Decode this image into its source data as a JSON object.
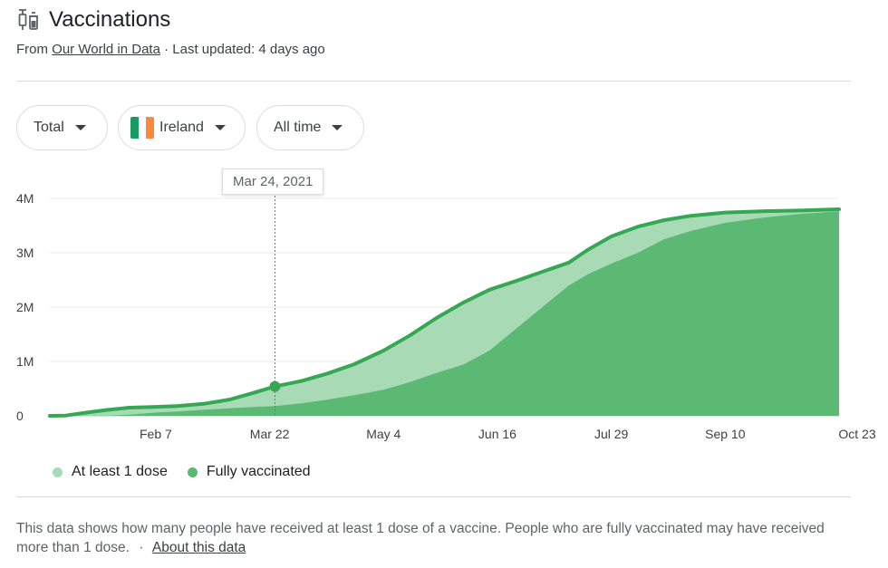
{
  "header": {
    "title": "Vaccinations",
    "source_prefix": "From",
    "source_link": "Our World in Data",
    "updated": "· Last updated: 4 days ago"
  },
  "filters": {
    "metric": "Total",
    "country": "Ireland",
    "range": "All time"
  },
  "tooltip": {
    "date": "Mar 24, 2021"
  },
  "legend": {
    "dose1": "At least 1 dose",
    "full": "Fully vaccinated"
  },
  "footnote": {
    "text": "This data shows how many people have received at least 1 dose of a vaccine. People who are fully vaccinated may have received more than 1 dose.",
    "separator": "·",
    "link": "About this data"
  },
  "colors": {
    "dose1_fill": "#a8dab5",
    "full_fill": "#5bb974",
    "line": "#34a853",
    "flag_green": "#169b62",
    "flag_white": "#ffffff",
    "flag_orange": "#ff883e"
  },
  "chart_data": {
    "type": "area",
    "title": "",
    "xlabel": "",
    "ylabel": "",
    "x_range": [
      "2020-12-29",
      "2021-10-23"
    ],
    "ylim": [
      0,
      4000000
    ],
    "y_ticks": [
      {
        "value": 0,
        "label": "0"
      },
      {
        "value": 1000000,
        "label": "1M"
      },
      {
        "value": 2000000,
        "label": "2M"
      },
      {
        "value": 3000000,
        "label": "3M"
      },
      {
        "value": 4000000,
        "label": "4M"
      }
    ],
    "x_ticks": [
      {
        "date": "2021-02-07",
        "label": "Feb 7"
      },
      {
        "date": "2021-03-22",
        "label": "Mar 22"
      },
      {
        "date": "2021-05-04",
        "label": "May 4"
      },
      {
        "date": "2021-06-16",
        "label": "Jun 16"
      },
      {
        "date": "2021-07-29",
        "label": "Jul 29"
      },
      {
        "date": "2021-09-10",
        "label": "Sep 10"
      },
      {
        "date": "2021-10-23",
        "label": "Oct 23"
      }
    ],
    "grid": true,
    "legend_position": "bottom-left",
    "highlight": {
      "date": "2021-03-24",
      "series": "At least 1 dose",
      "value": 540000
    },
    "series": [
      {
        "name": "At least 1 dose",
        "points": [
          [
            "2020-12-29",
            0
          ],
          [
            "2021-01-04",
            5000
          ],
          [
            "2021-01-12",
            60000
          ],
          [
            "2021-01-20",
            110000
          ],
          [
            "2021-01-28",
            150000
          ],
          [
            "2021-02-07",
            165000
          ],
          [
            "2021-02-15",
            180000
          ],
          [
            "2021-02-25",
            220000
          ],
          [
            "2021-03-07",
            300000
          ],
          [
            "2021-03-15",
            410000
          ],
          [
            "2021-03-24",
            540000
          ],
          [
            "2021-04-03",
            640000
          ],
          [
            "2021-04-13",
            780000
          ],
          [
            "2021-04-23",
            950000
          ],
          [
            "2021-05-04",
            1200000
          ],
          [
            "2021-05-14",
            1480000
          ],
          [
            "2021-05-24",
            1800000
          ],
          [
            "2021-06-03",
            2080000
          ],
          [
            "2021-06-13",
            2320000
          ],
          [
            "2021-06-23",
            2480000
          ],
          [
            "2021-07-03",
            2650000
          ],
          [
            "2021-07-13",
            2820000
          ],
          [
            "2021-07-20",
            3050000
          ],
          [
            "2021-07-29",
            3300000
          ],
          [
            "2021-08-08",
            3480000
          ],
          [
            "2021-08-18",
            3600000
          ],
          [
            "2021-08-28",
            3680000
          ],
          [
            "2021-09-10",
            3740000
          ],
          [
            "2021-09-25",
            3765000
          ],
          [
            "2021-10-10",
            3780000
          ],
          [
            "2021-10-23",
            3800000
          ]
        ]
      },
      {
        "name": "Fully vaccinated",
        "points": [
          [
            "2020-12-29",
            0
          ],
          [
            "2021-01-20",
            5000
          ],
          [
            "2021-01-28",
            20000
          ],
          [
            "2021-02-07",
            60000
          ],
          [
            "2021-02-15",
            80000
          ],
          [
            "2021-02-25",
            110000
          ],
          [
            "2021-03-07",
            140000
          ],
          [
            "2021-03-15",
            160000
          ],
          [
            "2021-03-24",
            180000
          ],
          [
            "2021-04-03",
            230000
          ],
          [
            "2021-04-13",
            300000
          ],
          [
            "2021-04-23",
            380000
          ],
          [
            "2021-05-04",
            480000
          ],
          [
            "2021-05-14",
            620000
          ],
          [
            "2021-05-24",
            790000
          ],
          [
            "2021-06-03",
            940000
          ],
          [
            "2021-06-13",
            1200000
          ],
          [
            "2021-06-23",
            1600000
          ],
          [
            "2021-07-03",
            2000000
          ],
          [
            "2021-07-13",
            2400000
          ],
          [
            "2021-07-20",
            2600000
          ],
          [
            "2021-07-29",
            2800000
          ],
          [
            "2021-08-08",
            3000000
          ],
          [
            "2021-08-18",
            3250000
          ],
          [
            "2021-08-28",
            3400000
          ],
          [
            "2021-09-10",
            3550000
          ],
          [
            "2021-09-25",
            3650000
          ],
          [
            "2021-10-10",
            3720000
          ],
          [
            "2021-10-23",
            3760000
          ]
        ]
      }
    ]
  }
}
